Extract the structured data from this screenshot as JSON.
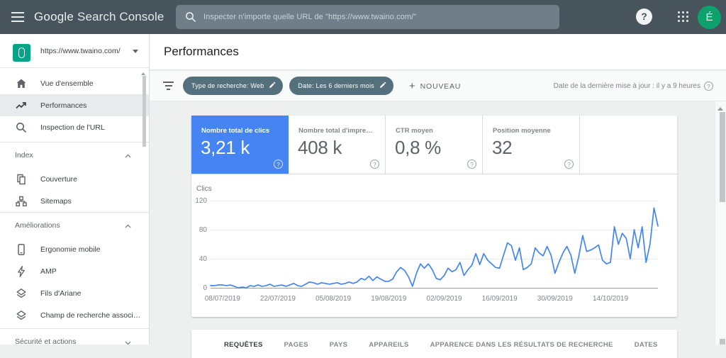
{
  "topbar": {
    "logo_google": "Google",
    "logo_rest": "Search Console",
    "search_placeholder": "Inspecter n'importe quelle URL de \"https://www.twaino.com/\"",
    "help_label": "?",
    "avatar_initial": "É"
  },
  "sidebar": {
    "property_url": "https://www.twaino.com/",
    "items": [
      {
        "label": "Vue d'ensemble",
        "icon": "home",
        "selected": false
      },
      {
        "label": "Performances",
        "icon": "trend",
        "selected": true
      },
      {
        "label": "Inspection de l'URL",
        "icon": "magnifier",
        "selected": false
      }
    ],
    "sections": [
      {
        "header": "Index",
        "chevron": "up",
        "items": [
          {
            "label": "Couverture",
            "icon": "pages"
          },
          {
            "label": "Sitemaps",
            "icon": "sitemap"
          }
        ]
      },
      {
        "header": "Améliorations",
        "chevron": "up",
        "items": [
          {
            "label": "Ergonomie mobile",
            "icon": "phone"
          },
          {
            "label": "AMP",
            "icon": "bolt"
          },
          {
            "label": "Fils d'Ariane",
            "icon": "layers"
          },
          {
            "label": "Champ de recherche associ…",
            "icon": "layers"
          }
        ]
      },
      {
        "header": "Sécurité et actions",
        "chevron": "down",
        "items": []
      }
    ]
  },
  "header": {
    "title": "Performances"
  },
  "filters": {
    "chips": [
      {
        "label": "Type de recherche: Web"
      },
      {
        "label": "Date: Les 6 derniers mois"
      }
    ],
    "new_button": "NOUVEAU",
    "updated_text": "Date de la dernière mise à jour : il y a 9 heures"
  },
  "cards": [
    {
      "label": "Nombre total de clics",
      "value": "3,21 k",
      "selected": true
    },
    {
      "label": "Nombre total d'impre…",
      "value": "408 k",
      "selected": false
    },
    {
      "label": "CTR moyen",
      "value": "0,8 %",
      "selected": false
    },
    {
      "label": "Position moyenne",
      "value": "32",
      "selected": false
    }
  ],
  "chart_data": {
    "type": "line",
    "ylabel": "Clics",
    "line_color": "#4285f4",
    "ylim": [
      0,
      120
    ],
    "yticks": [
      0,
      40,
      80,
      120
    ],
    "xtick_labels": [
      "08/07/2019",
      "22/07/2019",
      "05/08/2019",
      "19/08/2019",
      "02/09/2019",
      "16/09/2019",
      "30/09/2019",
      "14/10/2019"
    ],
    "xtick_indices": [
      3,
      17,
      31,
      45,
      59,
      73,
      87,
      101
    ],
    "values": [
      3,
      3,
      4,
      4,
      3,
      4,
      2,
      0,
      1,
      0,
      3,
      2,
      4,
      2,
      3,
      5,
      2,
      3,
      4,
      2,
      4,
      6,
      3,
      2,
      5,
      8,
      7,
      5,
      7,
      6,
      5,
      6,
      7,
      5,
      6,
      8,
      6,
      8,
      13,
      11,
      16,
      10,
      15,
      12,
      9,
      9,
      12,
      22,
      28,
      24,
      15,
      2,
      20,
      33,
      27,
      33,
      25,
      13,
      11,
      17,
      27,
      22,
      25,
      35,
      17,
      25,
      31,
      47,
      32,
      47,
      38,
      33,
      28,
      27,
      45,
      62,
      58,
      38,
      55,
      25,
      28,
      33,
      55,
      48,
      44,
      57,
      45,
      20,
      35,
      48,
      57,
      45,
      20,
      43,
      72,
      50,
      52,
      55,
      59,
      38,
      33,
      35,
      84,
      60,
      75,
      68,
      40,
      80,
      55,
      84,
      35,
      60,
      110,
      85
    ]
  },
  "tabs": [
    "REQUÊTES",
    "PAGES",
    "PAYS",
    "APPAREILS",
    "APPARENCE DANS LES RÉSULTATS DE RECHERCHE",
    "DATES"
  ]
}
